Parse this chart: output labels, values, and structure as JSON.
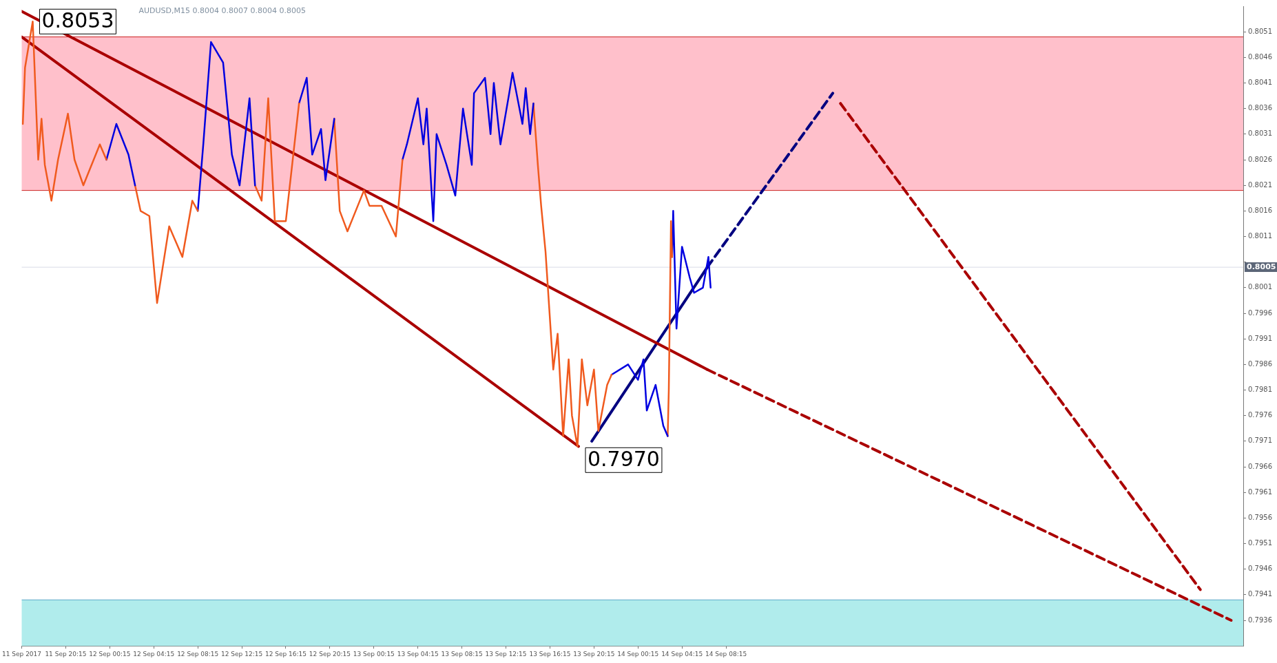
{
  "chart_data": {
    "type": "line",
    "title": "AUDUSD,M15 0.8004 0.8007 0.8004 0.8005",
    "marker": "none",
    "grid": false,
    "legend": false,
    "xlim": [
      "2017-09-11T16:15",
      "2017-09-16T07:15"
    ],
    "xticks": [
      {
        "value": "2017-09-11T16:15",
        "label": "11 Sep 2017"
      },
      {
        "value": "2017-09-11T20:15",
        "label": "11 Sep 20:15"
      },
      {
        "value": "2017-09-12T00:15",
        "label": "12 Sep 00:15"
      },
      {
        "value": "2017-09-12T04:15",
        "label": "12 Sep 04:15"
      },
      {
        "value": "2017-09-12T08:15",
        "label": "12 Sep 08:15"
      },
      {
        "value": "2017-09-12T12:15",
        "label": "12 Sep 12:15"
      },
      {
        "value": "2017-09-12T16:15",
        "label": "12 Sep 16:15"
      },
      {
        "value": "2017-09-12T20:15",
        "label": "12 Sep 20:15"
      },
      {
        "value": "2017-09-13T00:15",
        "label": "13 Sep 00:15"
      },
      {
        "value": "2017-09-13T04:15",
        "label": "13 Sep 04:15"
      },
      {
        "value": "2017-09-13T08:15",
        "label": "13 Sep 08:15"
      },
      {
        "value": "2017-09-13T12:15",
        "label": "13 Sep 12:15"
      },
      {
        "value": "2017-09-13T16:15",
        "label": "13 Sep 16:15"
      },
      {
        "value": "2017-09-13T20:15",
        "label": "13 Sep 20:15"
      },
      {
        "value": "2017-09-14T00:15",
        "label": "14 Sep 00:15"
      },
      {
        "value": "2017-09-14T04:15",
        "label": "14 Sep 04:15"
      },
      {
        "value": "2017-09-14T08:15",
        "label": "14 Sep 08:15"
      }
    ],
    "ylim": [
      0.7931,
      0.8056
    ],
    "yticks": [
      0.7936,
      0.7941,
      0.7946,
      0.7951,
      0.7956,
      0.7961,
      0.7966,
      0.7971,
      0.7976,
      0.7981,
      0.7986,
      0.7991,
      0.7996,
      0.8001,
      {
        "value": 0.8006,
        "label": null
      },
      0.8011,
      0.8016,
      0.8021,
      0.8026,
      0.8031,
      0.8036,
      0.8041,
      0.8046,
      0.8051
    ],
    "bands": [
      {
        "axis": "y",
        "from": 0.802,
        "to": 0.805,
        "color": "#ffc0cb"
      },
      {
        "axis": "y",
        "from": 0.7931,
        "to": 0.794,
        "color": "#b0ecec"
      }
    ],
    "ref_lines": [
      {
        "axis": "y",
        "value": 0.8005,
        "label": "0.8005",
        "color": "#d8dce6"
      },
      {
        "axis": "y",
        "value": 0.802,
        "color": "#cc2222"
      },
      {
        "axis": "y",
        "value": 0.805,
        "color": "#cc2222"
      },
      {
        "axis": "y",
        "value": 0.794,
        "color": "#5aa8c8"
      }
    ],
    "annotations": [
      {
        "text": "0.8053",
        "x": "2017-09-11T17:15",
        "y": 0.8053
      },
      {
        "text": "0.7970",
        "x": "2017-09-13T18:51",
        "y": 0.797
      }
    ],
    "series": [
      {
        "color": "#f05a1e",
        "x": [
          "2017-09-11T16:21",
          "2017-09-11T16:33",
          "2017-09-11T17:15",
          "2017-09-11T17:45",
          "2017-09-11T18:03",
          "2017-09-11T18:21",
          "2017-09-11T18:57",
          "2017-09-11T19:33",
          "2017-09-11T20:27",
          "2017-09-11T21:03",
          "2017-09-11T21:51",
          "2017-09-11T23:21",
          "2017-09-11T23:57"
        ],
        "values": [
          0.8033,
          0.8044,
          0.8053,
          0.8026,
          0.8034,
          0.8025,
          0.8018,
          0.8026,
          0.8035,
          0.8026,
          0.8021,
          0.8029,
          0.8026
        ]
      },
      {
        "color": "#0000e0",
        "x": [
          "2017-09-11T23:57",
          "2017-09-12T00:51",
          "2017-09-12T01:57",
          "2017-09-12T02:33"
        ],
        "values": [
          0.8026,
          0.8033,
          0.8027,
          0.8021
        ]
      },
      {
        "color": "#f05a1e",
        "x": [
          "2017-09-12T02:33",
          "2017-09-12T03:03",
          "2017-09-12T03:51",
          "2017-09-12T04:33",
          "2017-09-12T05:39",
          "2017-09-12T06:51",
          "2017-09-12T07:45",
          "2017-09-12T08:15"
        ],
        "values": [
          0.8021,
          0.8016,
          0.8015,
          0.7998,
          0.8013,
          0.8007,
          0.8018,
          0.8016
        ]
      },
      {
        "color": "#0000e0",
        "x": [
          "2017-09-12T08:15",
          "2017-09-12T08:45",
          "2017-09-12T09:27",
          "2017-09-12T10:33",
          "2017-09-12T11:21",
          "2017-09-12T12:03",
          "2017-09-12T12:57",
          "2017-09-12T13:27"
        ],
        "values": [
          0.8016,
          0.8029,
          0.8049,
          0.8045,
          0.8027,
          0.8021,
          0.8038,
          0.8021
        ]
      },
      {
        "color": "#f05a1e",
        "x": [
          "2017-09-12T13:27",
          "2017-09-12T14:03",
          "2017-09-12T14:39",
          "2017-09-12T15:15",
          "2017-09-12T16:15",
          "2017-09-12T17:27"
        ],
        "values": [
          0.8021,
          0.8018,
          0.8038,
          0.8014,
          0.8014,
          0.8037
        ]
      },
      {
        "color": "#0000e0",
        "x": [
          "2017-09-12T17:27",
          "2017-09-12T18:09",
          "2017-09-12T18:39",
          "2017-09-12T19:27",
          "2017-09-12T19:51",
          "2017-09-12T20:39"
        ],
        "values": [
          0.8037,
          0.8042,
          0.8027,
          0.8032,
          0.8022,
          0.8034
        ]
      },
      {
        "color": "#f05a1e",
        "x": [
          "2017-09-12T20:39",
          "2017-09-12T21:09",
          "2017-09-12T21:51",
          "2017-09-12T23:21",
          "2017-09-12T23:51",
          "2017-09-13T00:57",
          "2017-09-13T02:15",
          "2017-09-13T02:51"
        ],
        "values": [
          0.8034,
          0.8016,
          0.8012,
          0.802,
          0.8017,
          0.8017,
          0.8011,
          0.8026
        ]
      },
      {
        "color": "#0000e0",
        "x": [
          "2017-09-13T02:51",
          "2017-09-13T03:15",
          "2017-09-13T04:15",
          "2017-09-13T04:45",
          "2017-09-13T05:03",
          "2017-09-13T05:39",
          "2017-09-13T05:57",
          "2017-09-13T06:51",
          "2017-09-13T07:39",
          "2017-09-13T08:21",
          "2017-09-13T09:09",
          "2017-09-13T09:21",
          "2017-09-13T10:21",
          "2017-09-13T10:51",
          "2017-09-13T11:09",
          "2017-09-13T11:45",
          "2017-09-13T12:33",
          "2017-09-13T12:51",
          "2017-09-13T13:45",
          "2017-09-13T14:03",
          "2017-09-13T14:27",
          "2017-09-13T14:45"
        ],
        "values": [
          0.8026,
          0.8029,
          0.8038,
          0.8029,
          0.8036,
          0.8014,
          0.8031,
          0.8025,
          0.8019,
          0.8036,
          0.8025,
          0.8039,
          0.8042,
          0.8031,
          0.8041,
          0.8029,
          0.8039,
          0.8043,
          0.8033,
          0.804,
          0.8031,
          0.8037
        ]
      },
      {
        "color": "#f05a1e",
        "x": [
          "2017-09-13T14:45",
          "2017-09-13T15:09",
          "2017-09-13T15:27",
          "2017-09-13T15:51",
          "2017-09-13T16:33",
          "2017-09-13T16:57",
          "2017-09-13T17:27",
          "2017-09-13T17:57",
          "2017-09-13T18:15",
          "2017-09-13T18:45",
          "2017-09-13T19:09",
          "2017-09-13T19:39",
          "2017-09-13T20:15",
          "2017-09-13T20:39",
          "2017-09-13T21:27",
          "2017-09-13T21:51"
        ],
        "values": [
          0.8037,
          0.8025,
          0.8017,
          0.8008,
          0.7985,
          0.7992,
          0.7972,
          0.7987,
          0.7976,
          0.797,
          0.7987,
          0.7978,
          0.7985,
          0.7973,
          0.7982,
          0.7984
        ]
      },
      {
        "color": "#0000e0",
        "x": [
          "2017-09-13T21:51",
          "2017-09-13T23:21",
          "2017-09-14T00:15",
          "2017-09-14T00:45",
          "2017-09-14T01:03",
          "2017-09-14T01:51",
          "2017-09-14T02:33",
          "2017-09-14T02:57"
        ],
        "values": [
          0.7984,
          0.7986,
          0.7983,
          0.7987,
          0.7977,
          0.7982,
          0.7974,
          0.7972
        ]
      },
      {
        "color": "#f05a1e",
        "x": [
          "2017-09-14T02:57",
          "2017-09-14T03:03",
          "2017-09-14T03:15",
          "2017-09-14T03:21"
        ],
        "values": [
          0.7972,
          0.7981,
          0.8014,
          0.8007
        ]
      },
      {
        "color": "#0000e0",
        "x": [
          "2017-09-14T03:21",
          "2017-09-14T03:27",
          "2017-09-14T03:45",
          "2017-09-14T04:15",
          "2017-09-14T04:57",
          "2017-09-14T05:21",
          "2017-09-14T06:09",
          "2017-09-14T06:39",
          "2017-09-14T06:51"
        ],
        "values": [
          0.8007,
          0.8016,
          0.7993,
          0.8009,
          0.8003,
          0.8,
          0.8001,
          0.8007,
          0.8001
        ]
      },
      {
        "color": "#aa0000",
        "x": [
          "2017-09-11T16:15",
          "2017-09-14T06:33"
        ],
        "values": [
          0.8055,
          0.7985
        ]
      },
      {
        "color": "#aa0000",
        "line_style": "dashed",
        "x": [
          "2017-09-14T06:33",
          "2017-09-16T06:09"
        ],
        "values": [
          0.7985,
          0.7936
        ]
      },
      {
        "color": "#aa0000",
        "x": [
          "2017-09-11T16:15",
          "2017-09-13T18:51"
        ],
        "values": [
          0.805,
          0.797
        ]
      },
      {
        "color": "#000080",
        "x": [
          "2017-09-13T20:03",
          "2017-09-14T06:33"
        ],
        "values": [
          0.7971,
          0.8005
        ]
      },
      {
        "color": "#000080",
        "line_style": "dashed",
        "x": [
          "2017-09-14T06:33",
          "2017-09-14T17:57"
        ],
        "values": [
          0.8005,
          0.8039
        ]
      },
      {
        "color": "#aa0000",
        "line_style": "dashed",
        "x": [
          "2017-09-14T18:39",
          "2017-09-16T03:21"
        ],
        "values": [
          0.8037,
          0.7942
        ]
      }
    ]
  }
}
